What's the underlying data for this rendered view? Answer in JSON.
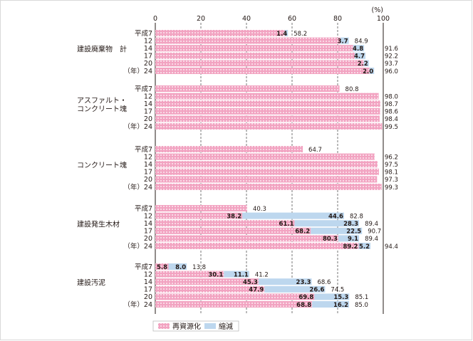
{
  "chart_data": {
    "type": "bar",
    "orientation": "horizontal",
    "stacked": true,
    "unit": "(%)",
    "xlim": [
      0,
      100
    ],
    "xticks": [
      0,
      20,
      40,
      60,
      80,
      100
    ],
    "grid": "dashed vertical",
    "legend_position": "bottom",
    "colors": {
      "recycle": "#f2a3c1",
      "reduce": "#bdd7ee",
      "dots": "#ffffff",
      "grid": "#555555"
    },
    "series_names": [
      "再資源化",
      "縮減"
    ],
    "groups": [
      {
        "name": "建設廃棄物　計",
        "rows": [
          {
            "year": "平成7",
            "recycle": 56.8,
            "reduce": 1.4,
            "total": "58.2",
            "reduce_label": "1.4"
          },
          {
            "year": "12",
            "recycle": 81.2,
            "reduce": 3.7,
            "total": "84.9",
            "reduce_label": "3.7"
          },
          {
            "year": "14",
            "recycle": 86.8,
            "reduce": 4.8,
            "total": "91.6",
            "reduce_label": "4.8"
          },
          {
            "year": "17",
            "recycle": 87.5,
            "reduce": 4.7,
            "total": "92.2",
            "reduce_label": "4.7"
          },
          {
            "year": "20",
            "recycle": 91.5,
            "reduce": 2.2,
            "total": "93.7",
            "reduce_label": "2.2"
          },
          {
            "year": "（年）24",
            "recycle": 94.0,
            "reduce": 2.0,
            "total": "96.0",
            "reduce_label": "2.0"
          }
        ]
      },
      {
        "name": "アスファルト・\nコンクリート塊",
        "rows": [
          {
            "year": "平成7",
            "recycle": 80.8,
            "reduce": 0,
            "total": "80.8"
          },
          {
            "year": "12",
            "recycle": 98.0,
            "reduce": 0,
            "total": "98.0"
          },
          {
            "year": "14",
            "recycle": 98.7,
            "reduce": 0,
            "total": "98.7"
          },
          {
            "year": "17",
            "recycle": 98.6,
            "reduce": 0,
            "total": "98.6"
          },
          {
            "year": "20",
            "recycle": 98.4,
            "reduce": 0,
            "total": "98.4"
          },
          {
            "year": "（年）24",
            "recycle": 99.5,
            "reduce": 0,
            "total": "99.5"
          }
        ]
      },
      {
        "name": "コンクリート塊",
        "rows": [
          {
            "year": "平成7",
            "recycle": 64.7,
            "reduce": 0,
            "total": "64.7"
          },
          {
            "year": "12",
            "recycle": 96.2,
            "reduce": 0,
            "total": "96.2"
          },
          {
            "year": "14",
            "recycle": 97.5,
            "reduce": 0,
            "total": "97.5"
          },
          {
            "year": "17",
            "recycle": 98.1,
            "reduce": 0,
            "total": "98.1"
          },
          {
            "year": "20",
            "recycle": 97.3,
            "reduce": 0,
            "total": "97.3"
          },
          {
            "year": "（年）24",
            "recycle": 99.3,
            "reduce": 0,
            "total": "99.3"
          }
        ]
      },
      {
        "name": "建設発生木材",
        "rows": [
          {
            "year": "平成7",
            "recycle": 40.3,
            "reduce": 0,
            "total": "40.3"
          },
          {
            "year": "12",
            "recycle": 38.2,
            "reduce": 44.6,
            "total": "82.8",
            "recycle_label": "38.2",
            "reduce_label": "44.6"
          },
          {
            "year": "14",
            "recycle": 61.1,
            "reduce": 28.3,
            "total": "89.4",
            "recycle_label": "61.1",
            "reduce_label": "28.3"
          },
          {
            "year": "17",
            "recycle": 68.2,
            "reduce": 22.5,
            "total": "90.7",
            "recycle_label": "68.2",
            "reduce_label": "22.5"
          },
          {
            "year": "20",
            "recycle": 80.3,
            "reduce": 9.1,
            "total": "89.4",
            "recycle_label": "80.3",
            "reduce_label": "9.1"
          },
          {
            "year": "（年）24",
            "recycle": 89.2,
            "reduce": 5.2,
            "total": "94.4",
            "recycle_label": "89.2",
            "reduce_label": "5.2"
          }
        ]
      },
      {
        "name": "建設汚泥",
        "rows": [
          {
            "year": "平成7",
            "recycle": 5.8,
            "reduce": 8.0,
            "total": "13.8",
            "recycle_label": "5.8",
            "reduce_label": "8.0"
          },
          {
            "year": "12",
            "recycle": 30.1,
            "reduce": 11.1,
            "total": "41.2",
            "recycle_label": "30.1",
            "reduce_label": "11.1"
          },
          {
            "year": "14",
            "recycle": 45.3,
            "reduce": 23.3,
            "total": "68.6",
            "recycle_label": "45.3",
            "reduce_label": "23.3"
          },
          {
            "year": "17",
            "recycle": 47.9,
            "reduce": 26.6,
            "total": "74.5",
            "recycle_label": "47.9",
            "reduce_label": "26.6"
          },
          {
            "year": "20",
            "recycle": 69.8,
            "reduce": 15.3,
            "total": "85.1",
            "recycle_label": "69.8",
            "reduce_label": "15.3"
          },
          {
            "year": "（年）24",
            "recycle": 68.8,
            "reduce": 16.2,
            "total": "85.0",
            "recycle_label": "68.8",
            "reduce_label": "16.2"
          }
        ]
      }
    ]
  }
}
